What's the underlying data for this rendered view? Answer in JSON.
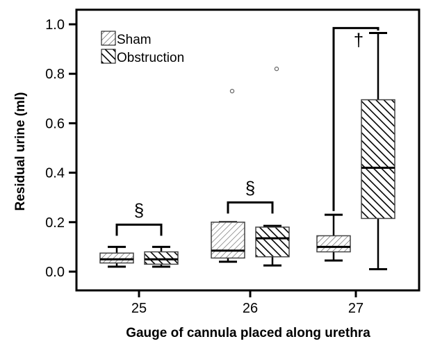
{
  "chart_data": {
    "type": "box",
    "xlabel": "Gauge of cannula placed along urethra",
    "ylabel": "Residual urine (ml)",
    "ylim": [
      0.0,
      1.0
    ],
    "yticks": [
      0.0,
      0.2,
      0.4,
      0.6,
      0.8,
      1.0
    ],
    "ytick_labels": [
      "0.0",
      "0.2",
      "0.4",
      "0.6",
      "0.8",
      "1.0"
    ],
    "categories": [
      "25",
      "26",
      "27"
    ],
    "legend": {
      "position": "top-left"
    },
    "series": [
      {
        "name": "Sham",
        "pattern": "light-hatch",
        "boxes": [
          {
            "category": "25",
            "min": 0.02,
            "q1": 0.035,
            "median": 0.05,
            "q3": 0.075,
            "max": 0.1,
            "outliers": []
          },
          {
            "category": "26",
            "min": 0.04,
            "q1": 0.055,
            "median": 0.085,
            "q3": 0.2,
            "max": 0.2,
            "outliers": [
              0.73
            ]
          },
          {
            "category": "27",
            "min": 0.045,
            "q1": 0.08,
            "median": 0.1,
            "q3": 0.145,
            "max": 0.23,
            "outliers": []
          }
        ]
      },
      {
        "name": "Obstruction",
        "pattern": "heavy-hatch",
        "boxes": [
          {
            "category": "25",
            "min": 0.02,
            "q1": 0.03,
            "median": 0.05,
            "q3": 0.08,
            "max": 0.1,
            "outliers": []
          },
          {
            "category": "26",
            "min": 0.025,
            "q1": 0.06,
            "median": 0.135,
            "q3": 0.18,
            "max": 0.185,
            "outliers": [
              0.82
            ]
          },
          {
            "category": "27",
            "min": 0.01,
            "q1": 0.215,
            "median": 0.42,
            "q3": 0.695,
            "max": 0.965,
            "outliers": []
          }
        ]
      }
    ],
    "annotations": [
      {
        "category": "25",
        "symbol": "§",
        "bracket_y": 0.19
      },
      {
        "category": "26",
        "symbol": "§",
        "bracket_y": 0.28
      },
      {
        "category": "27",
        "symbol": "†",
        "bracket_y": 0.985
      }
    ],
    "colors": {
      "axis": "#000000",
      "fill": "#ffffff",
      "outlier": "#666666"
    }
  }
}
